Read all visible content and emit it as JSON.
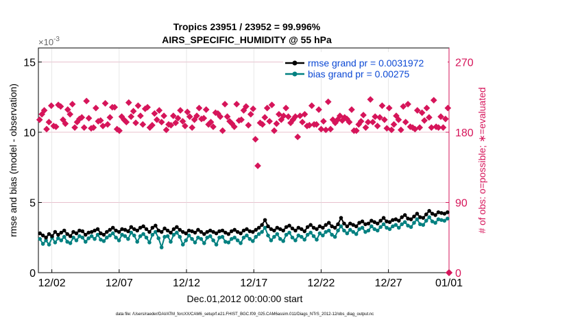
{
  "chart_data": {
    "type": "line",
    "title_line1": "Tropics 23951 / 23952 = 99.996%",
    "title_line2": "AIRS_SPECIFIC_HUMIDITY @ 55 hPa",
    "exponent_label": "×10",
    "exponent_power": "-3",
    "ylabel_left": "rmse and bias (model - observation)",
    "ylabel_right": "# of obs: o=possible; ∗=evaluated",
    "xlabel": "Dec.01,2012 00:00:00 start",
    "footer": "data file: /Users/raeder/DAI/ATM_forcXX/CAM6_setup/f.e21.FHIST_BGC.f09_025.CAM6assim.011/Diags_NTrS_2012-12/obs_diag_output.nc",
    "left_axis": {
      "min": 0,
      "max": 0.016,
      "ticks": [
        0,
        0.005,
        0.01,
        0.015
      ],
      "tick_labels": [
        "0",
        "5",
        "10",
        "15"
      ]
    },
    "right_axis": {
      "min": 0,
      "max": 288,
      "ticks": [
        0,
        90,
        180,
        270
      ],
      "tick_labels": [
        "0",
        "90",
        "180",
        "270"
      ]
    },
    "x_axis": {
      "min": 0.5,
      "max": 31.0,
      "ticks": [
        1.5,
        6.5,
        11.5,
        16.5,
        21.5,
        26.5,
        31.0
      ],
      "tick_labels": [
        "12/02",
        "12/07",
        "12/12",
        "12/17",
        "12/22",
        "12/27",
        "01/01"
      ]
    },
    "colors": {
      "rmse": "#000000",
      "bias": "#008080",
      "obs": "#d6155a",
      "grid": "#dddddd"
    },
    "series": [
      {
        "name": "rmse grand pr = 0.0031972",
        "axis": "left",
        "values": [
          0.0028,
          0.00265,
          0.0025,
          0.00275,
          0.0026,
          0.0029,
          0.0027,
          0.00285,
          0.003,
          0.00275,
          0.0026,
          0.0029,
          0.0028,
          0.003,
          0.00295,
          0.0027,
          0.00285,
          0.0029,
          0.003,
          0.0031,
          0.0028,
          0.0027,
          0.0029,
          0.00305,
          0.0032,
          0.003,
          0.0029,
          0.0031,
          0.00305,
          0.00295,
          0.00325,
          0.0031,
          0.003,
          0.0032,
          0.0033,
          0.0031,
          0.0029,
          0.0032,
          0.00335,
          0.003,
          0.0029,
          0.00315,
          0.003,
          0.00285,
          0.0031,
          0.00325,
          0.00305,
          0.0029,
          0.0028,
          0.003,
          0.00295,
          0.00285,
          0.00305,
          0.0029,
          0.00275,
          0.0029,
          0.003,
          0.0029,
          0.0028,
          0.00295,
          0.003,
          0.00285,
          0.00275,
          0.00295,
          0.00305,
          0.0029,
          0.0028,
          0.003,
          0.0031,
          0.00295,
          0.0029,
          0.00305,
          0.0032,
          0.0034,
          0.00375,
          0.0033,
          0.0031,
          0.003,
          0.0032,
          0.0031,
          0.003,
          0.00325,
          0.00335,
          0.00315,
          0.003,
          0.0032,
          0.0031,
          0.00295,
          0.00325,
          0.0034,
          0.0032,
          0.0031,
          0.0033,
          0.0032,
          0.0034,
          0.00355,
          0.0033,
          0.0032,
          0.00345,
          0.0039,
          0.0035,
          0.0033,
          0.0035,
          0.0034,
          0.0033,
          0.00355,
          0.00365,
          0.00345,
          0.0035,
          0.0037,
          0.0036,
          0.0035,
          0.0037,
          0.0039,
          0.00365,
          0.0036,
          0.00375,
          0.0038,
          0.0037,
          0.00395,
          0.0041,
          0.00385,
          0.0038,
          0.004,
          0.0042,
          0.00395,
          0.0039,
          0.00415,
          0.0044,
          0.0042,
          0.0041,
          0.0043,
          0.00425,
          0.0042,
          0.0043
        ]
      },
      {
        "name": "bias grand pr = 0.00275",
        "axis": "left",
        "values": [
          0.0024,
          0.00205,
          0.0023,
          0.002,
          0.0025,
          0.00215,
          0.00245,
          0.0023,
          0.00255,
          0.0022,
          0.0021,
          0.0025,
          0.0023,
          0.0026,
          0.0025,
          0.0022,
          0.00245,
          0.0026,
          0.0024,
          0.0027,
          0.00235,
          0.00225,
          0.0025,
          0.00265,
          0.0028,
          0.0025,
          0.0023,
          0.0027,
          0.0026,
          0.0024,
          0.00285,
          0.00265,
          0.0022,
          0.0026,
          0.00275,
          0.0025,
          0.00215,
          0.0027,
          0.0029,
          0.00245,
          0.0018,
          0.00255,
          0.0026,
          0.0022,
          0.0027,
          0.00285,
          0.00255,
          0.002,
          0.0023,
          0.00265,
          0.0024,
          0.00215,
          0.0025,
          0.0024,
          0.0021,
          0.0025,
          0.0026,
          0.0023,
          0.002,
          0.0025,
          0.00255,
          0.0022,
          0.00215,
          0.0024,
          0.0025,
          0.0023,
          0.0021,
          0.0025,
          0.00265,
          0.0024,
          0.00225,
          0.00255,
          0.00275,
          0.0029,
          0.0032,
          0.00265,
          0.0023,
          0.00255,
          0.00275,
          0.0024,
          0.00225,
          0.0027,
          0.00285,
          0.0025,
          0.0023,
          0.00265,
          0.00255,
          0.00235,
          0.0027,
          0.00285,
          0.0026,
          0.00235,
          0.0028,
          0.00265,
          0.0029,
          0.003,
          0.0027,
          0.00255,
          0.003,
          0.0033,
          0.003,
          0.0028,
          0.00305,
          0.0029,
          0.00275,
          0.0031,
          0.0032,
          0.0029,
          0.003,
          0.0033,
          0.0031,
          0.003,
          0.00325,
          0.00345,
          0.0032,
          0.0031,
          0.0033,
          0.0034,
          0.0032,
          0.00345,
          0.0036,
          0.00335,
          0.00325,
          0.00355,
          0.0038,
          0.00345,
          0.0034,
          0.0037,
          0.00395,
          0.00365,
          0.00355,
          0.0038,
          0.00375,
          0.0037,
          0.00385
        ]
      },
      {
        "name": "obs possible",
        "axis": "right",
        "marker": "o",
        "values": [
          0,
          0
        ]
      },
      {
        "name": "obs evaluated",
        "axis": "right",
        "marker": "*",
        "values": [
          196,
          203,
          208,
          184,
          193,
          214,
          188,
          187,
          215,
          213,
          196,
          191,
          209,
          203,
          216,
          186,
          193,
          197,
          199,
          186,
          220,
          198,
          185,
          186,
          211,
          194,
          195,
          188,
          217,
          190,
          199,
          212,
          212,
          184,
          182,
          200,
          196,
          193,
          218,
          200,
          207,
          192,
          214,
          201,
          190,
          210,
          212,
          186,
          189,
          204,
          196,
          208,
          193,
          201,
          183,
          190,
          189,
          201,
          192,
          198,
          208,
          194,
          188,
          206,
          200,
          186,
          196,
          201,
          211,
          197,
          198,
          209,
          190,
          193,
          187,
          205,
          204,
          200,
          182,
          216,
          200,
          194,
          191,
          187,
          216,
          195,
          196,
          208,
          213,
          189,
          203,
          210,
          171,
          137,
          192,
          190,
          199,
          211,
          194,
          215,
          182,
          191,
          203,
          196,
          201,
          211,
          200,
          192,
          196,
          200,
          174,
          201,
          193,
          203,
          188,
          189,
          214,
          190,
          190,
          209,
          184,
          194,
          183,
          219,
          184,
          196,
          192,
          196,
          201,
          195,
          199,
          197,
          193,
          209,
          182,
          182,
          190,
          194,
          202,
          186,
          193,
          222,
          193,
          200,
          188,
          199,
          214,
          196,
          185,
          211,
          183,
          190,
          201,
          196,
          183,
          213,
          193,
          216,
          187,
          186,
          184,
          208,
          186,
          205,
          195,
          211,
          199,
          186,
          221,
          187,
          186,
          200,
          186,
          197,
          211
        ]
      }
    ],
    "legend_position": "top-right",
    "grid": true
  }
}
